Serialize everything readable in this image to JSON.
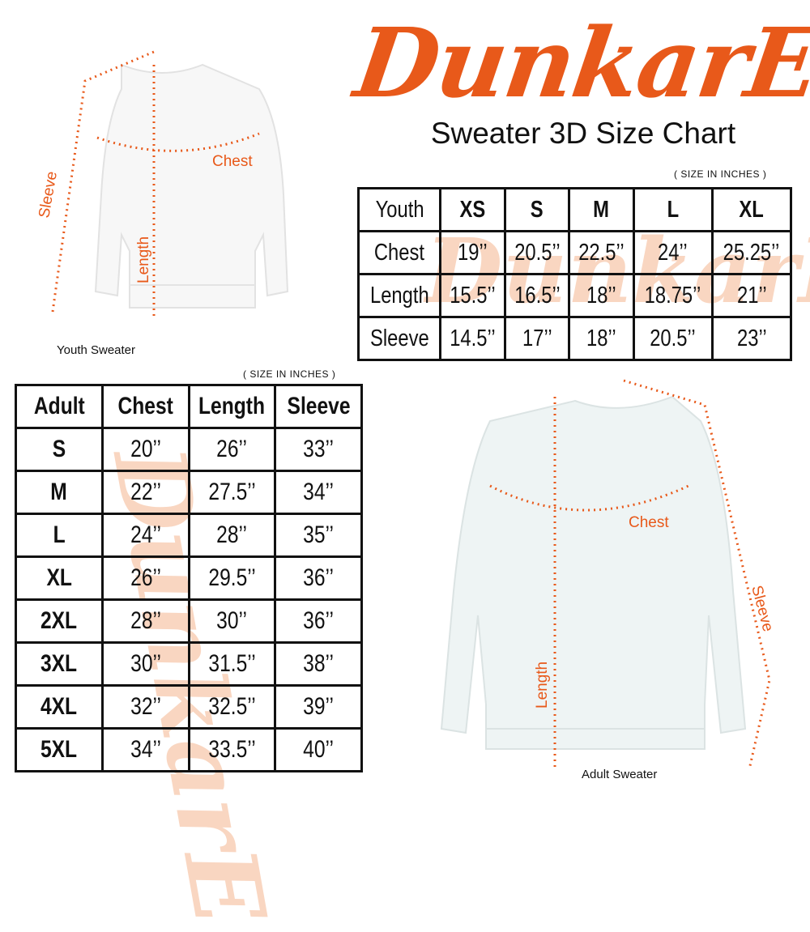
{
  "brand": {
    "logo_text": "DunkarE",
    "color": "#e8591a"
  },
  "title": "Sweater 3D Size Chart",
  "youth": {
    "unit_note": "( SIZE IN INCHES )",
    "caption": "Youth Sweater",
    "labels": {
      "sleeve": "Sleeve",
      "chest": "Chest",
      "length": "Length"
    },
    "headers": [
      "Youth",
      "XS",
      "S",
      "M",
      "L",
      "XL"
    ],
    "rows": [
      {
        "label": "Chest",
        "values": [
          "19’’",
          "20.5’’",
          "22.5’’",
          "24’’",
          "25.25’’"
        ]
      },
      {
        "label": "Length",
        "values": [
          "15.5’’",
          "16.5’’",
          "18’’",
          "18.75’’",
          "21’’"
        ]
      },
      {
        "label": "Sleeve",
        "values": [
          "14.5’’",
          "17’’",
          "18’’",
          "20.5’’",
          "23’’"
        ]
      }
    ]
  },
  "adult": {
    "unit_note": "( SIZE IN INCHES )",
    "caption": "Adult Sweater",
    "labels": {
      "sleeve": "Sleeve",
      "chest": "Chest",
      "length": "Length"
    },
    "headers": [
      "Adult",
      "Chest",
      "Length",
      "Sleeve"
    ],
    "rows": [
      {
        "size": "S",
        "values": [
          "20’’",
          "26’’",
          "33’’"
        ]
      },
      {
        "size": "M",
        "values": [
          "22’’",
          "27.5’’",
          "34’’"
        ]
      },
      {
        "size": "L",
        "values": [
          "24’’",
          "28’’",
          "35’’"
        ]
      },
      {
        "size": "XL",
        "values": [
          "26’’",
          "29.5’’",
          "36’’"
        ]
      },
      {
        "size": "2XL",
        "values": [
          "28’’",
          "30’’",
          "36’’"
        ]
      },
      {
        "size": "3XL",
        "values": [
          "30’’",
          "31.5’’",
          "38’’"
        ]
      },
      {
        "size": "4XL",
        "values": [
          "32’’",
          "32.5’’",
          "39’’"
        ]
      },
      {
        "size": "5XL",
        "values": [
          "34’’",
          "33.5’’",
          "40’’"
        ]
      }
    ]
  }
}
